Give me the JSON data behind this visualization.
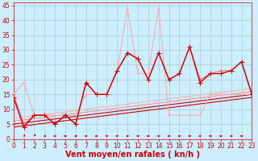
{
  "xlabel": "Vent moyen/en rafales ( kn/h )",
  "background_color": "#cceeff",
  "grid_color": "#aacccc",
  "xlim": [
    0,
    23
  ],
  "ylim": [
    0,
    46
  ],
  "xticks": [
    0,
    1,
    2,
    3,
    4,
    5,
    6,
    7,
    8,
    9,
    10,
    11,
    12,
    13,
    14,
    15,
    16,
    17,
    18,
    19,
    20,
    21,
    22,
    23
  ],
  "yticks": [
    0,
    5,
    10,
    15,
    20,
    25,
    30,
    35,
    40,
    45
  ],
  "line_main_x": [
    0,
    1,
    2,
    3,
    4,
    5,
    6,
    7,
    8,
    9,
    10,
    11,
    12,
    13,
    14,
    15,
    16,
    17,
    18,
    19,
    20,
    21,
    22,
    23
  ],
  "line_main_y": [
    14,
    4,
    8,
    8,
    5,
    8,
    5,
    19,
    15,
    15,
    23,
    29,
    27,
    20,
    29,
    20,
    22,
    31,
    19,
    22,
    22,
    23,
    26,
    15
  ],
  "line_main_color": "#cc0000",
  "line_pink_x": [
    0,
    1,
    2,
    3,
    4,
    5,
    6,
    7,
    8,
    9,
    10,
    11,
    12,
    13,
    14,
    15,
    16,
    17,
    18,
    19,
    20,
    21,
    22,
    23
  ],
  "line_pink_y": [
    15,
    19,
    8,
    8,
    8,
    8,
    8,
    15,
    15,
    15,
    23,
    44,
    22,
    22,
    44,
    8,
    8,
    8,
    8,
    15,
    15,
    15,
    15,
    15
  ],
  "line_pink_color": "#ffaaaa",
  "line_med_x": [
    0,
    1,
    2,
    3,
    4,
    5,
    6,
    7,
    8,
    9,
    10,
    11,
    12,
    13,
    14,
    15,
    16,
    17,
    18,
    19,
    20,
    21,
    22,
    23
  ],
  "line_med_y": [
    15,
    5,
    8,
    8,
    5,
    8,
    5,
    19,
    15,
    15,
    23,
    29,
    27,
    20,
    29,
    20,
    22,
    31,
    20,
    22,
    23,
    23,
    26,
    15
  ],
  "line_med_color": "#ff6666",
  "trend1_x": [
    0,
    23
  ],
  "trend1_y": [
    5,
    15
  ],
  "trend1_color": "#cc0000",
  "trend2_x": [
    0,
    23
  ],
  "trend2_y": [
    6,
    16
  ],
  "trend2_color": "#ff8888",
  "trend3_x": [
    0,
    23
  ],
  "trend3_y": [
    4,
    14
  ],
  "trend3_color": "#cc0000",
  "trend4_x": [
    0,
    23
  ],
  "trend4_y": [
    7,
    17
  ],
  "trend4_color": "#ffaaaa",
  "wind_dir_x": [
    0,
    1,
    2,
    3,
    4,
    5,
    6,
    7,
    8,
    9,
    10,
    11,
    12,
    13,
    14,
    15,
    16,
    17,
    18,
    19,
    20,
    21,
    22,
    23
  ],
  "wind_dir_angles": [
    200,
    190,
    185,
    195,
    270,
    270,
    250,
    265,
    265,
    265,
    265,
    265,
    265,
    265,
    265,
    265,
    265,
    265,
    265,
    270,
    275,
    280,
    270,
    60
  ],
  "xlabel_color": "#cc0000",
  "tick_color": "#cc0000",
  "tick_fontsize": 5.5,
  "label_fontsize": 7
}
